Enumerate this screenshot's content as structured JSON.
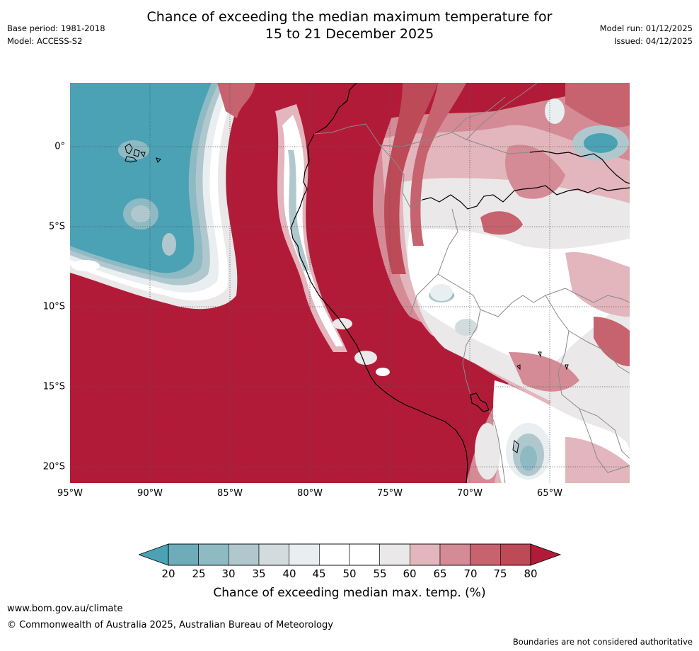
{
  "header": {
    "title_line1": "Chance of exceeding the median maximum temperature for",
    "title_line2": "15 to 21 December 2025",
    "base_period": "Base period: 1981-2018",
    "model": "Model: ACCESS-S2",
    "model_run": "Model run: 01/12/2025",
    "issued": "Issued: 04/12/2025"
  },
  "map": {
    "region": "Western South America and eastern Pacific",
    "lon_range": [
      -95,
      -60
    ],
    "lat_range": [
      -21,
      3.8
    ],
    "lat_ticks": [
      "0°",
      "5°S",
      "10°S",
      "15°S",
      "20°S"
    ],
    "lon_ticks": [
      "95°W",
      "90°W",
      "85°W",
      "80°W",
      "75°W",
      "70°W",
      "65°W"
    ],
    "colors": {
      "lt20": "#4aa2b4",
      "20_25": "#6eacba",
      "25_30": "#8ebac4",
      "30_35": "#b0c8cd",
      "35_40": "#d2dbde",
      "40_45": "#e9eef1",
      "45_50": "#ffffff",
      "50_55": "#ffffff",
      "55_60": "#eae8e8",
      "60_65": "#e2b6bc",
      "65_70": "#d48b95",
      "70_75": "#c6636e",
      "75_80": "#bd4a57",
      "gt80": "#b21b38"
    }
  },
  "colorbar": {
    "ticks": [
      "20",
      "25",
      "30",
      "35",
      "40",
      "45",
      "50",
      "55",
      "60",
      "65",
      "70",
      "75",
      "80"
    ],
    "colors": [
      "#6eacba",
      "#8ebac4",
      "#b0c8cd",
      "#d2dbde",
      "#e9eef1",
      "#ffffff",
      "#ffffff",
      "#eae8e8",
      "#e2b6bc",
      "#d48b95",
      "#c6636e",
      "#bd4a57"
    ],
    "under_color": "#4aa2b4",
    "over_color": "#b21b38",
    "label": "Chance of exceeding median max. temp. (%)"
  },
  "footer": {
    "url": "www.bom.gov.au/climate",
    "copyright": "© Commonwealth of Australia 2025, Australian Bureau of Meteorology",
    "disclaimer": "Boundaries are not considered authoritative"
  }
}
